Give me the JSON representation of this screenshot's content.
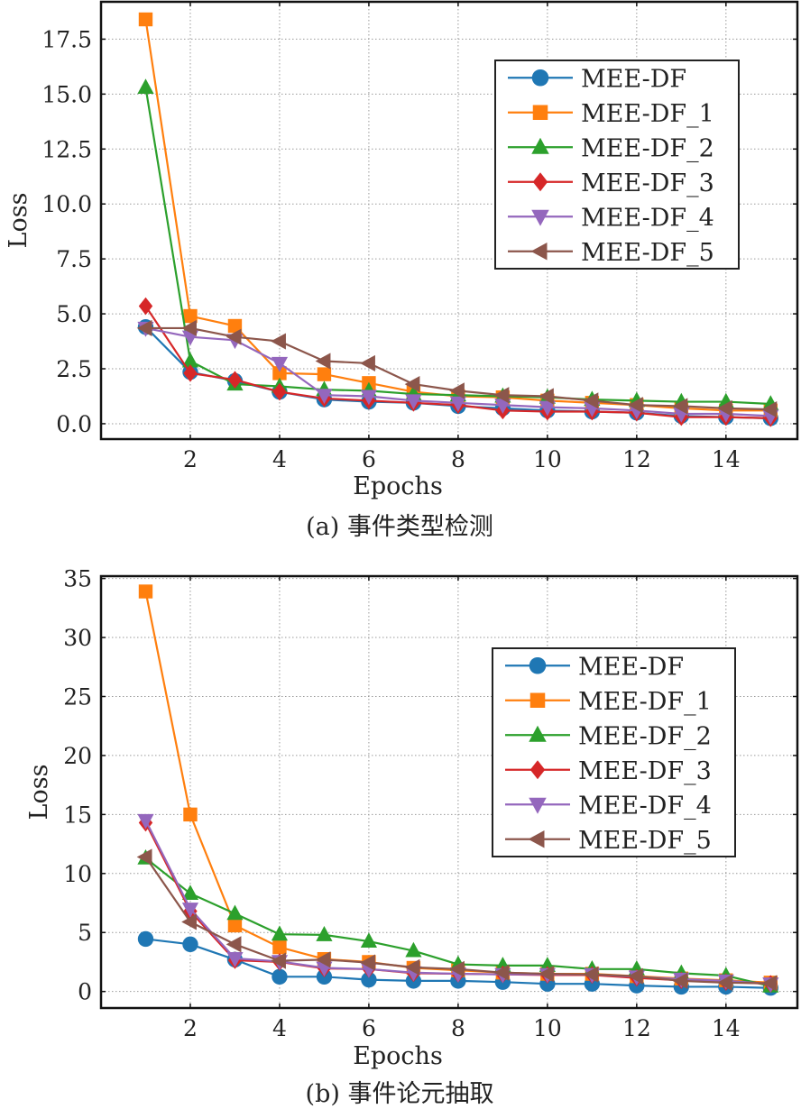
{
  "chart_data": [
    {
      "type": "line",
      "title": "",
      "caption": "(a) 事件类型检测",
      "xlabel": "Epochs",
      "ylabel": "Loss",
      "xlim": [
        0,
        15.6
      ],
      "ylim": [
        -0.7,
        19.2
      ],
      "xticks": [
        2,
        4,
        6,
        8,
        10,
        12,
        14
      ],
      "xtick_labels": [
        "2",
        "4",
        "6",
        "8",
        "10",
        "12",
        "14"
      ],
      "yticks": [
        0,
        2.5,
        5,
        7.5,
        10,
        12.5,
        15,
        17.5
      ],
      "ytick_labels": [
        "0.0",
        "2.5",
        "5.0",
        "7.5",
        "10.0",
        "12.5",
        "15.0",
        "17.5"
      ],
      "grid": true,
      "legend_position": "upper-right",
      "x": [
        1,
        2,
        3,
        4,
        5,
        6,
        7,
        8,
        9,
        10,
        11,
        12,
        13,
        14,
        15
      ],
      "series": [
        {
          "name": "MEE-DF",
          "color": "#1f77b4",
          "marker": "circle",
          "values": [
            4.4,
            2.35,
            1.95,
            1.45,
            1.1,
            1.0,
            0.95,
            0.8,
            0.7,
            0.6,
            0.55,
            0.5,
            0.35,
            0.3,
            0.25
          ]
        },
        {
          "name": "MEE-DF_1",
          "color": "#ff7f0e",
          "marker": "square",
          "values": [
            18.4,
            4.9,
            4.45,
            2.3,
            2.25,
            1.85,
            1.45,
            1.25,
            1.2,
            1.05,
            0.95,
            0.85,
            0.7,
            0.6,
            0.6
          ]
        },
        {
          "name": "MEE-DF_2",
          "color": "#2ca02c",
          "marker": "triangle-up",
          "values": [
            15.3,
            2.85,
            1.8,
            1.7,
            1.55,
            1.5,
            1.35,
            1.3,
            1.25,
            1.2,
            1.1,
            1.05,
            1.0,
            1.0,
            0.9
          ]
        },
        {
          "name": "MEE-DF_3",
          "color": "#d62728",
          "marker": "diamond",
          "values": [
            5.35,
            2.3,
            2.0,
            1.45,
            1.15,
            1.05,
            0.95,
            0.85,
            0.6,
            0.55,
            0.55,
            0.5,
            0.3,
            0.3,
            0.25
          ]
        },
        {
          "name": "MEE-DF_4",
          "color": "#9467bd",
          "marker": "triangle-down",
          "values": [
            4.35,
            3.95,
            3.8,
            2.75,
            1.3,
            1.25,
            1.05,
            0.95,
            0.85,
            0.75,
            0.7,
            0.6,
            0.45,
            0.45,
            0.35
          ]
        },
        {
          "name": "MEE-DF_5",
          "color": "#8c564b",
          "marker": "triangle-left",
          "values": [
            4.35,
            4.35,
            3.95,
            3.75,
            2.85,
            2.75,
            1.8,
            1.5,
            1.3,
            1.25,
            1.05,
            0.85,
            0.8,
            0.7,
            0.65
          ]
        }
      ]
    },
    {
      "type": "line",
      "title": "",
      "caption": "(b) 事件论元抽取",
      "xlabel": "Epochs",
      "ylabel": "Loss",
      "xlim": [
        0,
        15.6
      ],
      "ylim": [
        -1.4,
        35.2
      ],
      "xticks": [
        2,
        4,
        6,
        8,
        10,
        12,
        14
      ],
      "xtick_labels": [
        "2",
        "4",
        "6",
        "8",
        "10",
        "12",
        "14"
      ],
      "yticks": [
        0,
        5,
        10,
        15,
        20,
        25,
        30,
        35
      ],
      "ytick_labels": [
        "0",
        "5",
        "10",
        "15",
        "20",
        "25",
        "30",
        "35"
      ],
      "grid": true,
      "legend_position": "center-right",
      "x": [
        1,
        2,
        3,
        4,
        5,
        6,
        7,
        8,
        9,
        10,
        11,
        12,
        13,
        14,
        15
      ],
      "series": [
        {
          "name": "MEE-DF",
          "color": "#1f77b4",
          "marker": "circle",
          "values": [
            4.45,
            4.0,
            2.7,
            1.25,
            1.25,
            1.0,
            0.9,
            0.9,
            0.8,
            0.65,
            0.65,
            0.5,
            0.4,
            0.4,
            0.3
          ]
        },
        {
          "name": "MEE-DF_1",
          "color": "#ff7f0e",
          "marker": "square",
          "values": [
            33.9,
            15.0,
            5.6,
            3.75,
            2.75,
            2.5,
            2.0,
            1.8,
            1.6,
            1.5,
            1.5,
            1.3,
            1.1,
            0.95,
            0.75
          ]
        },
        {
          "name": "MEE-DF_2",
          "color": "#2ca02c",
          "marker": "triangle-up",
          "values": [
            11.3,
            8.3,
            6.6,
            4.85,
            4.8,
            4.25,
            3.45,
            2.3,
            2.2,
            2.2,
            1.9,
            1.9,
            1.55,
            1.35,
            0.45
          ]
        },
        {
          "name": "MEE-DF_3",
          "color": "#d62728",
          "marker": "diamond",
          "values": [
            14.3,
            6.8,
            2.65,
            2.5,
            1.95,
            1.9,
            1.55,
            1.5,
            1.45,
            1.4,
            1.4,
            1.15,
            0.95,
            0.8,
            0.65
          ]
        },
        {
          "name": "MEE-DF_4",
          "color": "#9467bd",
          "marker": "triangle-down",
          "values": [
            14.5,
            7.0,
            2.8,
            2.55,
            2.0,
            1.9,
            1.6,
            1.5,
            1.45,
            1.45,
            1.45,
            1.25,
            1.05,
            0.9,
            0.65
          ]
        },
        {
          "name": "MEE-DF_5",
          "color": "#8c564b",
          "marker": "triangle-left",
          "values": [
            11.4,
            5.9,
            4.0,
            2.6,
            2.7,
            2.45,
            2.05,
            1.9,
            1.6,
            1.5,
            1.45,
            1.3,
            0.9,
            0.75,
            0.7
          ]
        }
      ]
    }
  ]
}
